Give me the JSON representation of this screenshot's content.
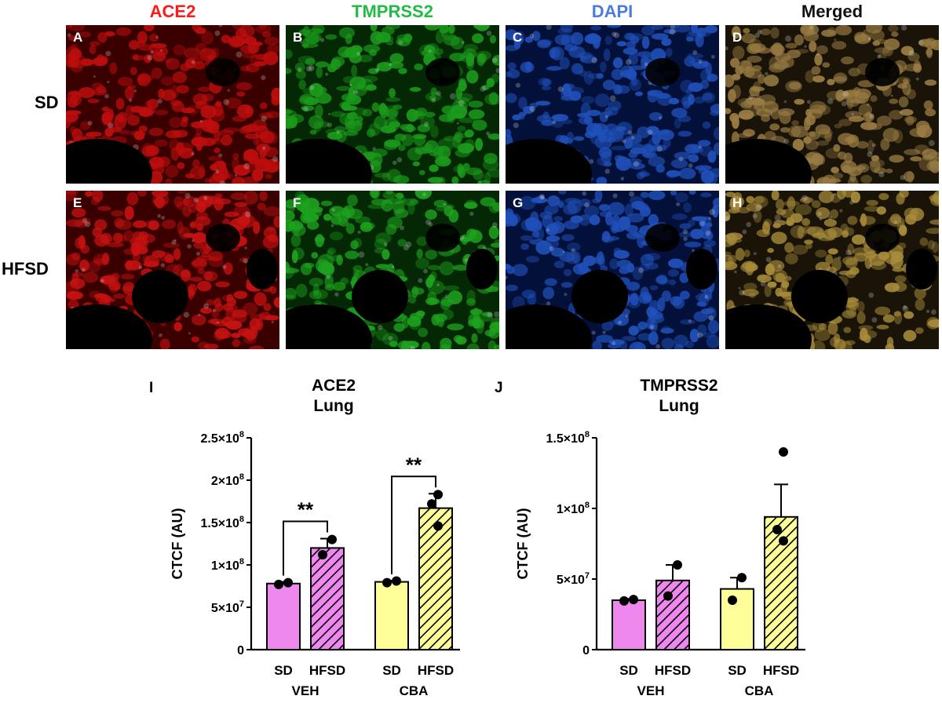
{
  "figure": {
    "columns": [
      {
        "label": "ACE2",
        "color": "#ff1a1a"
      },
      {
        "label": "TMPRSS2",
        "color": "#22bb44"
      },
      {
        "label": "DAPI",
        "color": "#4a7ddb"
      },
      {
        "label": "Merged",
        "color": "#111111"
      }
    ],
    "rows": [
      {
        "label": "SD",
        "panels": [
          "A",
          "B",
          "C",
          "D"
        ]
      },
      {
        "label": "HFSD",
        "panels": [
          "E",
          "F",
          "G",
          "H"
        ]
      }
    ]
  },
  "chart_data": [
    {
      "type": "bar",
      "panel": "I",
      "title": [
        "ACE2",
        "Lung"
      ],
      "ylabel": "CTCF (AU)",
      "ylim": [
        0,
        250000000
      ],
      "yticks": [
        0,
        50000000,
        100000000,
        150000000,
        200000000,
        250000000
      ],
      "yticklabels": [
        "0",
        "5×10",
        "1×10",
        "1.5×10",
        "2×10",
        "2.5×10"
      ],
      "ytickexponents": [
        "",
        "7",
        "8",
        "8",
        "8",
        "8"
      ],
      "groups": [
        {
          "name": "VEH",
          "bars": [
            {
              "label": "SD",
              "value": 78000000,
              "error": 2000000,
              "points": [
                77000000,
                79000000
              ],
              "color": "#ee88ee",
              "hatch": false
            },
            {
              "label": "HFSD",
              "value": 120000000,
              "error": 11000000,
              "points": [
                112000000,
                130000000
              ],
              "color": "#ee88ee",
              "hatch": true
            }
          ]
        },
        {
          "name": "CBA",
          "bars": [
            {
              "label": "SD",
              "value": 80000000,
              "error": 1500000,
              "points": [
                79000000,
                81000000
              ],
              "color": "#ffff99",
              "hatch": false
            },
            {
              "label": "HFSD",
              "value": 167000000,
              "error": 17000000,
              "points": [
                146000000,
                172000000,
                183000000
              ],
              "color": "#ffff99",
              "hatch": true
            }
          ]
        }
      ],
      "significance": [
        {
          "group": "VEH",
          "text": "**"
        },
        {
          "group": "CBA",
          "text": "**"
        }
      ]
    },
    {
      "type": "bar",
      "panel": "J",
      "title": [
        "TMPRSS2",
        "Lung"
      ],
      "ylabel": "CTCF (AU)",
      "ylim": [
        0,
        150000000
      ],
      "yticks": [
        0,
        50000000,
        100000000,
        150000000
      ],
      "yticklabels": [
        "0",
        "5×10",
        "1×10",
        "1.5×10"
      ],
      "ytickexponents": [
        "",
        "7",
        "8",
        "8"
      ],
      "groups": [
        {
          "name": "VEH",
          "bars": [
            {
              "label": "SD",
              "value": 35000000,
              "error": 1000000,
              "points": [
                34500000,
                35500000
              ],
              "color": "#ee88ee",
              "hatch": false
            },
            {
              "label": "HFSD",
              "value": 49000000,
              "error": 11000000,
              "points": [
                38000000,
                60000000
              ],
              "color": "#ee88ee",
              "hatch": true
            }
          ]
        },
        {
          "name": "CBA",
          "bars": [
            {
              "label": "SD",
              "value": 43000000,
              "error": 8000000,
              "points": [
                35000000,
                51000000
              ],
              "color": "#ffff99",
              "hatch": false
            },
            {
              "label": "HFSD",
              "value": 94000000,
              "error": 23000000,
              "points": [
                77000000,
                85000000,
                140000000
              ],
              "color": "#ffff99",
              "hatch": true
            }
          ]
        }
      ],
      "significance": []
    }
  ]
}
